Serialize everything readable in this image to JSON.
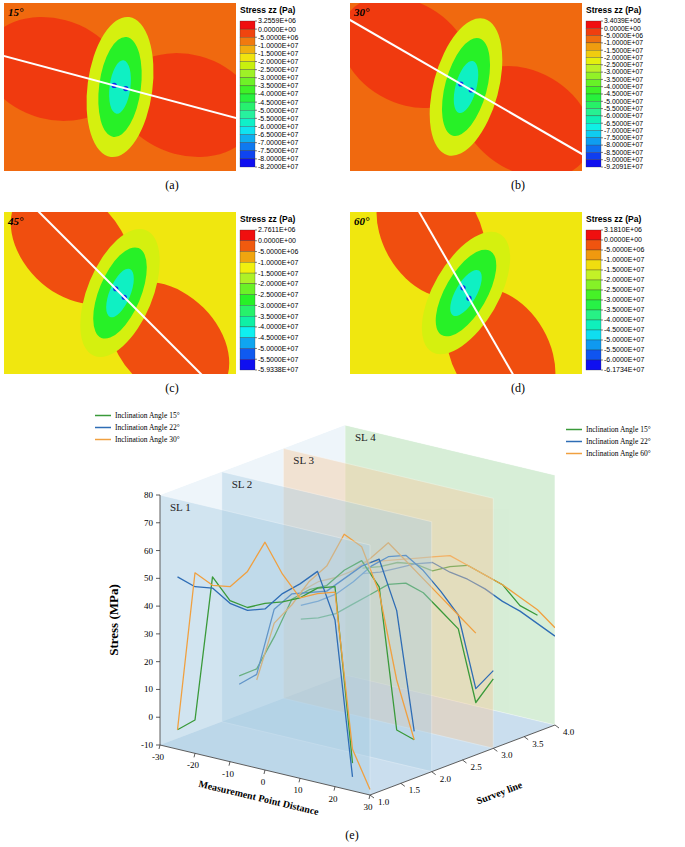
{
  "chart_data": [
    {
      "type": "contour",
      "caption": "(a)",
      "angle_label": "15°",
      "colorbar": {
        "title": "Stress zz (Pa)",
        "ticks": [
          {
            "value": 3255900,
            "label": "3.2559E+06"
          },
          {
            "value": 0,
            "label": "0.0000E+00"
          },
          {
            "value": -5000000,
            "label": "-5.0000E+06"
          },
          {
            "value": -10000000,
            "label": "-1.0000E+07"
          },
          {
            "value": -15000000,
            "label": "-1.5000E+07"
          },
          {
            "value": -20000000,
            "label": "-2.0000E+07"
          },
          {
            "value": -25000000,
            "label": "-2.5000E+07"
          },
          {
            "value": -30000000,
            "label": "-3.0000E+07"
          },
          {
            "value": -35000000,
            "label": "-3.5000E+07"
          },
          {
            "value": -40000000,
            "label": "-4.0000E+07"
          },
          {
            "value": -45000000,
            "label": "-4.5000E+07"
          },
          {
            "value": -50000000,
            "label": "-5.0000E+07"
          },
          {
            "value": -55000000,
            "label": "-5.5000E+07"
          },
          {
            "value": -60000000,
            "label": "-6.0000E+07"
          },
          {
            "value": -65000000,
            "label": "-6.5000E+07"
          },
          {
            "value": -70000000,
            "label": "-7.0000E+07"
          },
          {
            "value": -75000000,
            "label": "-7.5000E+07"
          },
          {
            "value": -80000000,
            "label": "-8.0000E+07"
          },
          {
            "value": -82000000,
            "label": "-8.2000E+07"
          }
        ]
      }
    },
    {
      "type": "contour",
      "caption": "(b)",
      "angle_label": "30°",
      "colorbar": {
        "title": "Stress zz (Pa)",
        "ticks": [
          {
            "value": 3403900,
            "label": "3.4039E+06"
          },
          {
            "value": 0,
            "label": "0.0000E+00"
          },
          {
            "value": -5000000,
            "label": "-5.0000E+06"
          },
          {
            "value": -10000000,
            "label": "-1.0000E+07"
          },
          {
            "value": -15000000,
            "label": "-1.5000E+07"
          },
          {
            "value": -20000000,
            "label": "-2.0000E+07"
          },
          {
            "value": -25000000,
            "label": "-2.5000E+07"
          },
          {
            "value": -30000000,
            "label": "-3.0000E+07"
          },
          {
            "value": -35000000,
            "label": "-3.5000E+07"
          },
          {
            "value": -40000000,
            "label": "-4.0000E+07"
          },
          {
            "value": -45000000,
            "label": "-4.5000E+07"
          },
          {
            "value": -50000000,
            "label": "-5.0000E+07"
          },
          {
            "value": -55000000,
            "label": "-5.5000E+07"
          },
          {
            "value": -60000000,
            "label": "-6.0000E+07"
          },
          {
            "value": -65000000,
            "label": "-6.5000E+07"
          },
          {
            "value": -70000000,
            "label": "-7.0000E+07"
          },
          {
            "value": -75000000,
            "label": "-7.5000E+07"
          },
          {
            "value": -80000000,
            "label": "-8.0000E+07"
          },
          {
            "value": -85000000,
            "label": "-8.5000E+07"
          },
          {
            "value": -90000000,
            "label": "-9.0000E+07"
          },
          {
            "value": -92091000,
            "label": "-9.2091E+07"
          }
        ]
      }
    },
    {
      "type": "contour",
      "caption": "(c)",
      "angle_label": "45°",
      "colorbar": {
        "title": "Stress zz (Pa)",
        "ticks": [
          {
            "value": 2761100,
            "label": "2.7611E+06"
          },
          {
            "value": 0,
            "label": "0.0000E+00"
          },
          {
            "value": -5000000,
            "label": "-5.0000E+06"
          },
          {
            "value": -10000000,
            "label": "-1.0000E+07"
          },
          {
            "value": -15000000,
            "label": "-1.5000E+07"
          },
          {
            "value": -20000000,
            "label": "-2.0000E+07"
          },
          {
            "value": -25000000,
            "label": "-2.5000E+07"
          },
          {
            "value": -30000000,
            "label": "-3.0000E+07"
          },
          {
            "value": -35000000,
            "label": "-3.5000E+07"
          },
          {
            "value": -40000000,
            "label": "-4.0000E+07"
          },
          {
            "value": -45000000,
            "label": "-4.5000E+07"
          },
          {
            "value": -50000000,
            "label": "-5.0000E+07"
          },
          {
            "value": -55000000,
            "label": "-5.5000E+07"
          },
          {
            "value": -59338000,
            "label": "-5.9338E+07"
          }
        ]
      }
    },
    {
      "type": "contour",
      "caption": "(d)",
      "angle_label": "60°",
      "colorbar": {
        "title": "Stress zz (Pa)",
        "ticks": [
          {
            "value": 3181000,
            "label": "3.1810E+06"
          },
          {
            "value": 0,
            "label": "0.0000E+00"
          },
          {
            "value": -5000000,
            "label": "-5.0000E+06"
          },
          {
            "value": -10000000,
            "label": "-1.0000E+07"
          },
          {
            "value": -15000000,
            "label": "-1.5000E+07"
          },
          {
            "value": -20000000,
            "label": "-2.0000E+07"
          },
          {
            "value": -25000000,
            "label": "-2.5000E+07"
          },
          {
            "value": -30000000,
            "label": "-3.0000E+07"
          },
          {
            "value": -35000000,
            "label": "-3.5000E+07"
          },
          {
            "value": -40000000,
            "label": "-4.0000E+07"
          },
          {
            "value": -45000000,
            "label": "-4.5000E+07"
          },
          {
            "value": -50000000,
            "label": "-5.0000E+07"
          },
          {
            "value": -55000000,
            "label": "-5.5000E+07"
          },
          {
            "value": -60000000,
            "label": "-6.0000E+07"
          },
          {
            "value": -61734000,
            "label": "-6.1734E+07"
          }
        ]
      }
    },
    {
      "type": "line3d",
      "caption": "(e)",
      "x_label": "Measurement Point Distance",
      "y_label": "Stress (MPa)",
      "z_label": "Survey line",
      "xlim": [
        -30,
        30
      ],
      "xticks": [
        -30,
        -20,
        -10,
        0,
        10,
        20,
        30
      ],
      "ylim": [
        -10,
        80
      ],
      "yticks": [
        -10,
        0,
        10,
        20,
        30,
        40,
        50,
        60,
        70,
        80
      ],
      "zlim": [
        1,
        4
      ],
      "zticks": [
        {
          "value": 1,
          "label": "1.0"
        },
        {
          "value": 1.5,
          "label": "1.5"
        },
        {
          "value": 2,
          "label": "2.0"
        },
        {
          "value": 2.5,
          "label": "2.5"
        },
        {
          "value": 3,
          "label": "3.0"
        },
        {
          "value": 3.5,
          "label": "3.5"
        },
        {
          "value": 4,
          "label": "4.0"
        }
      ],
      "grid": false,
      "legend": "top",
      "planes": [
        {
          "label": "SL 1",
          "survey_line": 1,
          "color": "#a9cce3"
        },
        {
          "label": "SL 2",
          "survey_line": 2,
          "color": "#a9cce3"
        },
        {
          "label": "SL 3",
          "survey_line": 3,
          "color": "#f5c99b"
        },
        {
          "label": "SL 4",
          "survey_line": 4,
          "color": "#9fd6a0"
        }
      ],
      "x": [
        -30,
        -25,
        -20,
        -15,
        -10,
        -5,
        0,
        5,
        10,
        15,
        20,
        25,
        30
      ],
      "series": [
        {
          "name": "Inclination Angle 15°",
          "color": "#3a9a3a",
          "survey_line": 1,
          "values": [
            null,
            -3,
            2,
            55,
            48,
            47,
            50,
            52,
            55,
            60,
            62,
            0,
            null
          ]
        },
        {
          "name": "Inclination Angle 22°",
          "color": "#2f6db5",
          "survey_line": 1,
          "values": [
            null,
            52,
            50,
            51,
            47,
            46,
            48,
            55,
            60,
            66,
            50,
            -5,
            null
          ]
        },
        {
          "name": "Inclination Angle 30°",
          "color": "#f0a040",
          "survey_line": 1,
          "values": [
            null,
            -3,
            55,
            52,
            53,
            60,
            72,
            62,
            55,
            58,
            60,
            5,
            -8
          ]
        },
        {
          "name": "Inclination Angle 15°",
          "color": "#3a9a3a",
          "survey_line": 2,
          "values": [
            null,
            8,
            12,
            25,
            40,
            45,
            48,
            55,
            60,
            52,
            2,
            0,
            null
          ]
        },
        {
          "name": "Inclination Angle 22°",
          "color": "#2f6db5",
          "survey_line": 2,
          "values": [
            null,
            5,
            10,
            35,
            42,
            44,
            46,
            52,
            58,
            62,
            45,
            3,
            null
          ]
        },
        {
          "name": "Inclination Angle 30°",
          "color": "#f0a040",
          "survey_line": 2,
          "values": [
            null,
            null,
            8,
            30,
            38,
            48,
            55,
            68,
            65,
            50,
            20,
            0,
            null
          ]
        },
        {
          "name": "Inclination Angle 15°",
          "color": "#3a9a3a",
          "survey_line": 3,
          "values": [
            null,
            20,
            22,
            25,
            30,
            35,
            40,
            42,
            40,
            35,
            30,
            5,
            15
          ]
        },
        {
          "name": "Inclination Angle 22°",
          "color": "#2f6db5",
          "survey_line": 3,
          "values": [
            null,
            25,
            28,
            32,
            38,
            45,
            50,
            52,
            48,
            42,
            35,
            10,
            18
          ]
        },
        {
          "name": "Inclination Angle 30°",
          "color": "#f0a040",
          "survey_line": 3,
          "values": [
            null,
            30,
            35,
            38,
            42,
            48,
            55,
            50,
            45,
            40,
            35,
            30,
            null
          ]
        },
        {
          "name": "Inclination Angle 15°",
          "color": "#3a9a3a",
          "survey_line": 4,
          "values": [
            null,
            30,
            32,
            35,
            36,
            35,
            38,
            40,
            38,
            36,
            30,
            28,
            null
          ]
        },
        {
          "name": "Inclination Angle 22°",
          "color": "#2f6db5",
          "survey_line": 4,
          "values": [
            null,
            28,
            30,
            33,
            36,
            38,
            36,
            35,
            33,
            30,
            28,
            25,
            22
          ]
        },
        {
          "name": "Inclination Angle 60°",
          "color": "#f0a040",
          "survey_line": 4,
          "values": [
            null,
            32,
            34,
            36,
            38,
            40,
            42,
            40,
            38,
            36,
            33,
            30,
            25
          ]
        }
      ]
    }
  ]
}
